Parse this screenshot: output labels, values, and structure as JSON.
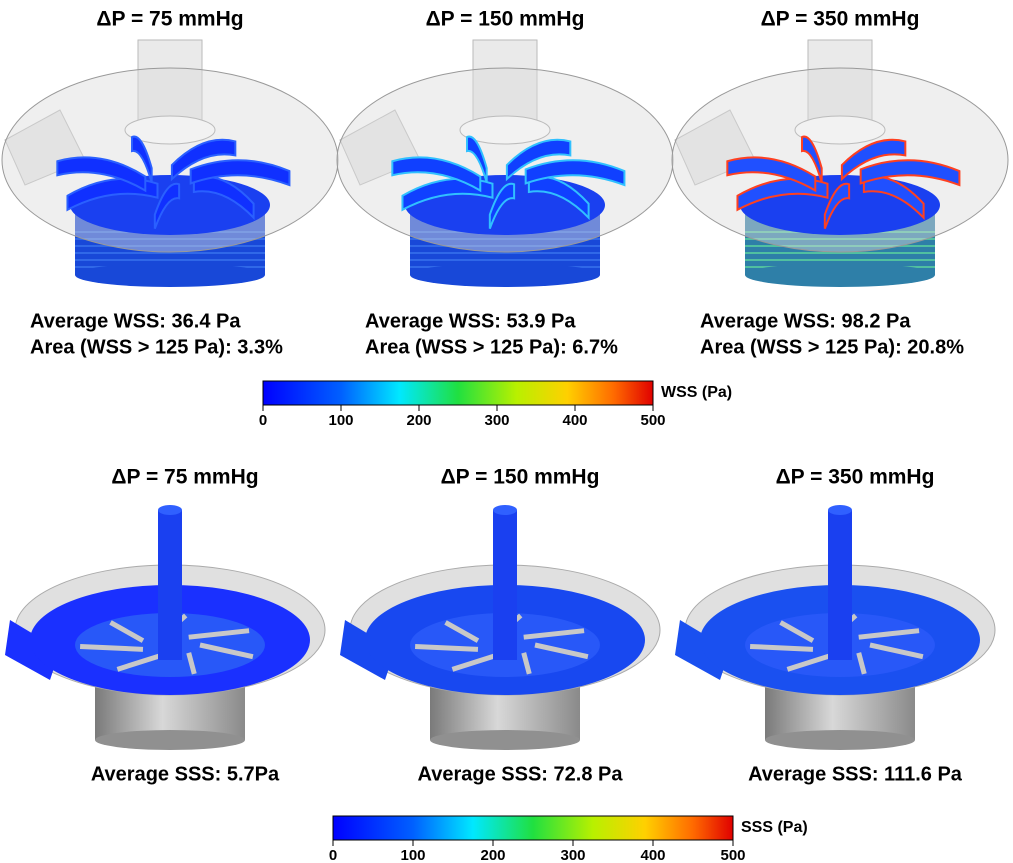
{
  "wss": {
    "panels": [
      {
        "title": "ΔP = 75 mmHg",
        "average": "Average WSS: 36.4 Pa",
        "area": "Area (WSS > 125 Pa): 3.3%"
      },
      {
        "title": "ΔP = 150 mmHg",
        "average": "Average WSS: 53.9 Pa",
        "area": "Area (WSS > 125 Pa): 6.7%"
      },
      {
        "title": "ΔP = 350 mmHg",
        "average": "Average WSS: 98.2 Pa",
        "area": "Area (WSS > 125 Pa): 20.8%"
      }
    ],
    "colorbar": {
      "label": "WSS (Pa)",
      "ticks": [
        0,
        100,
        200,
        300,
        400,
        500
      ]
    }
  },
  "sss": {
    "panels": [
      {
        "title": "ΔP = 75 mmHg",
        "average": "Average SSS: 5.7Pa"
      },
      {
        "title": "ΔP = 150 mmHg",
        "average": "Average SSS: 72.8 Pa"
      },
      {
        "title": "ΔP = 350 mmHg",
        "average": "Average SSS: 111.6 Pa"
      }
    ],
    "colorbar": {
      "label": "SSS  (Pa)",
      "ticks": [
        0,
        100,
        200,
        300,
        400,
        500
      ]
    }
  }
}
